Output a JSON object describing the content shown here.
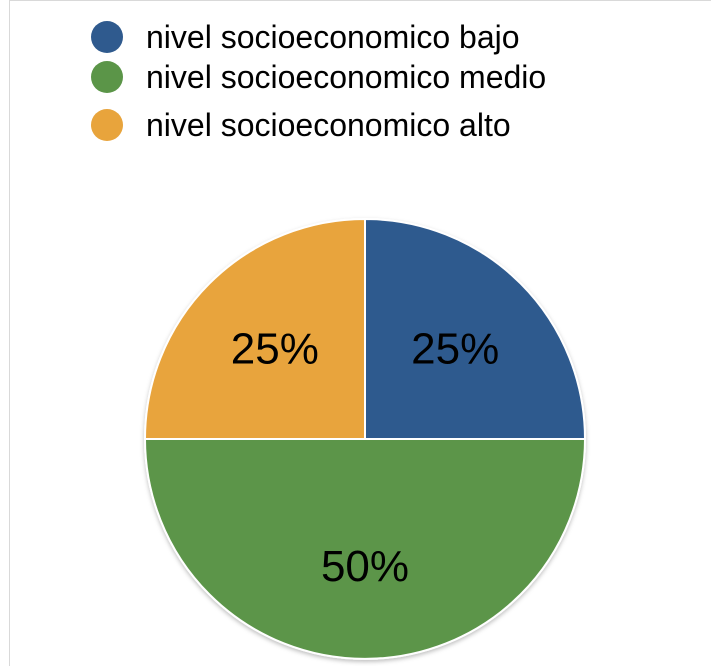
{
  "chart_data": {
    "type": "pie",
    "title": "",
    "series": [
      {
        "name": "",
        "slices": [
          {
            "label": "nivel socioeconomico bajo",
            "value": 25,
            "display": "25%",
            "color": "#2f5a8e"
          },
          {
            "label": "nivel socioeconomico medio",
            "value": 50,
            "display": "50%",
            "color": "#5b9548"
          },
          {
            "label": "nivel socioeconomico alto",
            "value": 25,
            "display": "25%",
            "color": "#e8a43c"
          }
        ]
      }
    ],
    "legend": {
      "position": "top",
      "items": [
        "nivel socioeconomico bajo",
        "nivel socioeconomico medio",
        "nivel socioeconomico alto"
      ]
    }
  }
}
